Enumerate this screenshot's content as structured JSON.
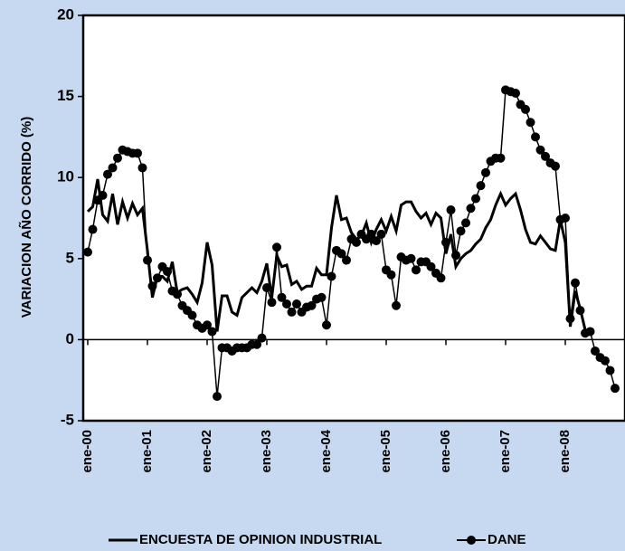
{
  "chart_data": {
    "type": "line",
    "y_label": "VARIACION AÑO CORRIDO (%)",
    "categories": [
      "ene-00",
      null,
      null,
      null,
      null,
      null,
      null,
      null,
      null,
      null,
      null,
      null,
      "ene-01",
      null,
      null,
      null,
      null,
      null,
      null,
      null,
      null,
      null,
      null,
      null,
      "ene-02",
      null,
      null,
      null,
      null,
      null,
      null,
      null,
      null,
      null,
      null,
      null,
      "ene-03",
      null,
      null,
      null,
      null,
      null,
      null,
      null,
      null,
      null,
      null,
      null,
      "ene-04",
      null,
      null,
      null,
      null,
      null,
      null,
      null,
      null,
      null,
      null,
      null,
      "ene-05",
      null,
      null,
      null,
      null,
      null,
      null,
      null,
      null,
      null,
      null,
      null,
      "ene-06",
      null,
      null,
      null,
      null,
      null,
      null,
      null,
      null,
      null,
      null,
      null,
      "ene-07",
      null,
      null,
      null,
      null,
      null,
      null,
      null,
      null,
      null,
      null,
      null,
      "ene-08",
      null,
      null,
      null,
      null,
      null,
      null,
      null,
      null,
      null,
      null
    ],
    "series": [
      {
        "name": "ENCUESTA DE OPINION INDUSTRIAL",
        "color": "#000000",
        "marker": false,
        "values": [
          7.9,
          8.2,
          9.9,
          7.7,
          7.3,
          9.0,
          7.1,
          8.5,
          7.5,
          8.4,
          7.7,
          8.1,
          5.5,
          2.6,
          3.9,
          3.9,
          3.6,
          4.8,
          2.9,
          3.1,
          3.2,
          2.8,
          2.3,
          3.5,
          6.0,
          4.6,
          0.5,
          2.7,
          2.7,
          1.7,
          1.5,
          2.6,
          2.9,
          3.2,
          2.9,
          3.6,
          4.7,
          2.6,
          5.2,
          4.5,
          4.6,
          3.4,
          3.6,
          3.1,
          3.3,
          3.3,
          4.4,
          4.0,
          4.0,
          6.9,
          8.9,
          7.4,
          7.5,
          6.6,
          6.2,
          6.4,
          7.2,
          6.0,
          6.8,
          7.4,
          6.7,
          7.6,
          6.7,
          8.3,
          8.5,
          8.5,
          7.9,
          7.5,
          7.8,
          7.1,
          7.8,
          7.5,
          5.3,
          6.5,
          4.5,
          5.0,
          5.3,
          5.5,
          5.9,
          6.2,
          6.9,
          7.4,
          8.3,
          9.0,
          8.3,
          8.7,
          9.0,
          8.0,
          6.8,
          6.0,
          5.9,
          6.4,
          6.0,
          5.6,
          5.5,
          7.4,
          6.0,
          0.8,
          3.0,
          1.9,
          0.6,
          null,
          null,
          null,
          null,
          null,
          null
        ]
      },
      {
        "name": "DANE",
        "color": "#000000",
        "marker": true,
        "values": [
          5.4,
          6.8,
          8.6,
          8.9,
          10.2,
          10.6,
          11.2,
          11.7,
          11.6,
          11.5,
          11.5,
          10.6,
          4.9,
          3.3,
          3.8,
          4.5,
          4.2,
          3.0,
          2.8,
          2.1,
          1.8,
          1.5,
          0.9,
          0.7,
          0.9,
          0.5,
          -3.5,
          -0.5,
          -0.5,
          -0.7,
          -0.5,
          -0.5,
          -0.5,
          -0.3,
          -0.3,
          0.1,
          3.2,
          2.3,
          5.7,
          2.6,
          2.2,
          1.7,
          2.2,
          1.7,
          2.0,
          2.1,
          2.5,
          2.6,
          0.9,
          3.9,
          5.5,
          5.3,
          4.9,
          6.2,
          6.0,
          6.5,
          6.2,
          6.5,
          6.1,
          6.5,
          4.3,
          4.0,
          2.1,
          5.1,
          4.9,
          5.0,
          4.3,
          4.8,
          4.8,
          4.5,
          4.1,
          3.8,
          6.0,
          8.0,
          5.2,
          6.7,
          7.2,
          8.1,
          8.7,
          9.5,
          10.3,
          11.0,
          11.2,
          11.2,
          15.4,
          15.3,
          15.2,
          14.5,
          14.2,
          13.4,
          12.5,
          11.7,
          11.3,
          10.9,
          10.7,
          7.4,
          7.5,
          1.3,
          3.5,
          1.8,
          0.4,
          0.5,
          -0.7,
          -1.1,
          -1.3,
          -1.9,
          -3.0
        ]
      }
    ],
    "ylim": [
      -5,
      20
    ],
    "yticks": [
      -5,
      0,
      5,
      10,
      15,
      20
    ]
  }
}
